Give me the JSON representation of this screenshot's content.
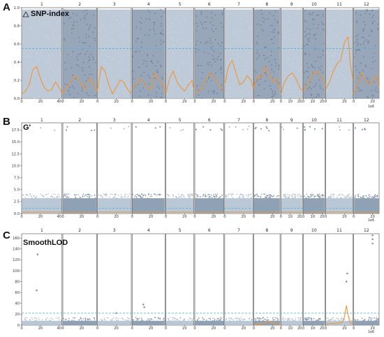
{
  "chart_data": [
    {
      "type": "scatter",
      "panel": "A",
      "title": "SNP-index",
      "title_icon": "triangle-icon",
      "chromosomes": [
        "1",
        "2",
        "3",
        "4",
        "5",
        "6",
        "7",
        "8",
        "9",
        "10",
        "11",
        "12"
      ],
      "chromosome_lengths_mb": [
        43,
        36,
        36,
        35,
        30,
        31,
        30,
        28,
        23,
        23,
        29,
        27
      ],
      "x_tick_labels": [
        [
          "0",
          "20",
          "40"
        ],
        [
          "0",
          "20"
        ],
        [
          "0",
          "20"
        ],
        [
          "0",
          "20"
        ],
        [
          "0",
          "20"
        ],
        [
          "0",
          "20"
        ],
        [
          "0",
          "20"
        ],
        [
          "0",
          "20"
        ],
        [
          "0",
          "10",
          "20"
        ],
        [
          "0",
          "10",
          "20"
        ],
        [
          "0",
          "20"
        ],
        [
          "0",
          "20"
        ]
      ],
      "x_tick_values": [
        [
          0,
          20,
          40
        ],
        [
          0,
          20
        ],
        [
          0,
          20
        ],
        [
          0,
          20
        ],
        [
          0,
          20
        ],
        [
          0,
          20
        ],
        [
          0,
          20
        ],
        [
          0,
          20
        ],
        [
          0,
          10,
          20
        ],
        [
          0,
          10,
          20
        ],
        [
          0,
          20
        ],
        [
          0,
          20
        ]
      ],
      "x_scale_label": "1e6",
      "ylim": [
        0,
        1.0
      ],
      "yticks": [
        "0.0",
        "0.2",
        "0.4",
        "0.6",
        "0.8",
        "1.0"
      ],
      "threshold": 0.55,
      "point_colors": [
        "#b3c1d1",
        "#8597ad"
      ],
      "line_color": "#f29433",
      "threshold_color": "#5ab4d6",
      "scatter": {
        "upper_typical": 0.98,
        "upper_peak": 1.0
      },
      "series": [
        {
          "name": "",
          "chromosome": "1",
          "x": [
            0,
            4,
            8,
            12,
            16,
            20,
            24,
            28,
            32,
            36,
            40,
            43
          ],
          "y": [
            0.05,
            0.08,
            0.15,
            0.32,
            0.35,
            0.22,
            0.12,
            0.08,
            0.1,
            0.18,
            0.12,
            0.06
          ]
        },
        {
          "name": "",
          "chromosome": "2",
          "x": [
            0,
            4,
            8,
            12,
            16,
            20,
            24,
            28,
            32,
            36
          ],
          "y": [
            0.05,
            0.12,
            0.18,
            0.25,
            0.22,
            0.15,
            0.1,
            0.22,
            0.18,
            0.08
          ]
        },
        {
          "name": "",
          "chromosome": "3",
          "x": [
            0,
            4,
            8,
            12,
            16,
            20,
            24,
            28,
            32,
            36
          ],
          "y": [
            0.08,
            0.35,
            0.3,
            0.15,
            0.05,
            0.12,
            0.2,
            0.18,
            0.1,
            0.05
          ]
        },
        {
          "name": "",
          "chromosome": "4",
          "x": [
            0,
            4,
            8,
            12,
            16,
            20,
            24,
            28,
            32,
            35
          ],
          "y": [
            0.1,
            0.15,
            0.22,
            0.18,
            0.12,
            0.1,
            0.28,
            0.22,
            0.15,
            0.08
          ]
        },
        {
          "name": "",
          "chromosome": "5",
          "x": [
            0,
            4,
            8,
            12,
            16,
            20,
            24,
            28,
            30
          ],
          "y": [
            0.05,
            0.22,
            0.3,
            0.18,
            0.12,
            0.08,
            0.15,
            0.2,
            0.1
          ]
        },
        {
          "name": "",
          "chromosome": "6",
          "x": [
            0,
            4,
            8,
            12,
            16,
            20,
            24,
            28,
            31
          ],
          "y": [
            0.05,
            0.08,
            0.12,
            0.2,
            0.28,
            0.25,
            0.18,
            0.12,
            0.08
          ]
        },
        {
          "name": "",
          "chromosome": "7",
          "x": [
            0,
            4,
            8,
            12,
            16,
            20,
            24,
            28,
            30
          ],
          "y": [
            0.15,
            0.35,
            0.42,
            0.28,
            0.15,
            0.18,
            0.25,
            0.2,
            0.12
          ]
        },
        {
          "name": "",
          "chromosome": "8",
          "x": [
            0,
            4,
            8,
            12,
            16,
            20,
            24,
            28
          ],
          "y": [
            0.1,
            0.25,
            0.22,
            0.35,
            0.28,
            0.18,
            0.22,
            0.1
          ]
        },
        {
          "name": "",
          "chromosome": "9",
          "x": [
            0,
            4,
            8,
            12,
            16,
            20,
            23
          ],
          "y": [
            0.05,
            0.18,
            0.25,
            0.28,
            0.22,
            0.12,
            0.08
          ]
        },
        {
          "name": "",
          "chromosome": "10",
          "x": [
            0,
            4,
            8,
            12,
            16,
            20,
            23
          ],
          "y": [
            0.08,
            0.15,
            0.22,
            0.3,
            0.28,
            0.22,
            0.15
          ]
        },
        {
          "name": "",
          "chromosome": "11",
          "x": [
            0,
            4,
            8,
            12,
            16,
            20,
            24,
            26,
            29
          ],
          "y": [
            0.1,
            0.18,
            0.3,
            0.38,
            0.42,
            0.62,
            0.68,
            0.4,
            0.2
          ]
        },
        {
          "name": "",
          "chromosome": "12",
          "x": [
            0,
            4,
            8,
            12,
            16,
            20,
            24,
            27
          ],
          "y": [
            0.05,
            0.15,
            0.28,
            0.22,
            0.15,
            0.2,
            0.25,
            0.12
          ]
        }
      ]
    },
    {
      "type": "scatter",
      "panel": "B",
      "title": "G'",
      "chromosomes": [
        "1",
        "2",
        "3",
        "4",
        "5",
        "6",
        "7",
        "8",
        "9",
        "10",
        "11",
        "12"
      ],
      "chromosome_lengths_mb": [
        43,
        36,
        36,
        35,
        30,
        31,
        30,
        28,
        23,
        23,
        29,
        27
      ],
      "x_tick_labels": [
        [
          "0",
          "20",
          "40"
        ],
        [
          "0",
          "20"
        ],
        [
          "0",
          "20"
        ],
        [
          "0",
          "20"
        ],
        [
          "0",
          "20"
        ],
        [
          "0",
          "20"
        ],
        [
          "0",
          "20"
        ],
        [
          "0",
          "20"
        ],
        [
          "0",
          "10",
          "20"
        ],
        [
          "0",
          "10",
          "20"
        ],
        [
          "0",
          "20"
        ],
        [
          "0",
          "20"
        ]
      ],
      "x_tick_values": [
        [
          0,
          20,
          40
        ],
        [
          0,
          20
        ],
        [
          0,
          20
        ],
        [
          0,
          20
        ],
        [
          0,
          20
        ],
        [
          0,
          20
        ],
        [
          0,
          20
        ],
        [
          0,
          20
        ],
        [
          0,
          10,
          20
        ],
        [
          0,
          10,
          20
        ],
        [
          0,
          20
        ],
        [
          0,
          20
        ]
      ],
      "x_scale_label": "1e6",
      "ylim": [
        0,
        19
      ],
      "yticks": [
        "0.0",
        "2.5",
        "5.0",
        "7.5",
        "10.0",
        "12.5",
        "15.0",
        "17.5"
      ],
      "threshold": 1.1,
      "point_colors": [
        "#b3c1d1",
        "#8597ad"
      ],
      "line_color": "#f29433",
      "threshold_color": "#5ab4d6",
      "scatter": {
        "upper_typical": 3.2,
        "outlier_value": 17.8
      },
      "series": [
        {
          "name": "",
          "chromosome": "all",
          "y_typical": 0.3
        }
      ]
    },
    {
      "type": "scatter",
      "panel": "C",
      "title": "SmoothLOD",
      "chromosomes": [
        "1",
        "2",
        "3",
        "4",
        "5",
        "6",
        "7",
        "8",
        "9",
        "10",
        "11",
        "12"
      ],
      "chromosome_lengths_mb": [
        43,
        36,
        36,
        35,
        30,
        31,
        30,
        28,
        23,
        23,
        29,
        27
      ],
      "x_tick_labels": [
        [
          "0",
          "20",
          "40"
        ],
        [
          "0",
          "20"
        ],
        [
          "0",
          "20"
        ],
        [
          "0",
          "20"
        ],
        [
          "0",
          "20"
        ],
        [
          "0",
          "20"
        ],
        [
          "0",
          "20"
        ],
        [
          "0",
          "20"
        ],
        [
          "0",
          "10",
          "20"
        ],
        [
          "0",
          "10",
          "20"
        ],
        [
          "0",
          "20"
        ],
        [
          "0",
          "20"
        ]
      ],
      "x_tick_values": [
        [
          0,
          20,
          40
        ],
        [
          0,
          20
        ],
        [
          0,
          20
        ],
        [
          0,
          20
        ],
        [
          0,
          20
        ],
        [
          0,
          20
        ],
        [
          0,
          20
        ],
        [
          0,
          20
        ],
        [
          0,
          10,
          20
        ],
        [
          0,
          10,
          20
        ],
        [
          0,
          20
        ],
        [
          0,
          20
        ]
      ],
      "x_scale_label": "1e6",
      "ylim": [
        0,
        168
      ],
      "yticks": [
        "0",
        "20",
        "40",
        "60",
        "80",
        "100",
        "120",
        "140",
        "160"
      ],
      "threshold": 22,
      "point_colors": [
        "#b3c1d1",
        "#8597ad"
      ],
      "line_color": "#f29433",
      "threshold_color": "#5ab4d6",
      "scatter": {
        "upper_typical": 8
      },
      "outliers": [
        {
          "chromosome": "1",
          "x": 17,
          "y": 130
        },
        {
          "chromosome": "1",
          "x": 16,
          "y": 64
        },
        {
          "chromosome": "3",
          "x": 20,
          "y": 22
        },
        {
          "chromosome": "4",
          "x": 12,
          "y": 38
        },
        {
          "chromosome": "4",
          "x": 13,
          "y": 33
        },
        {
          "chromosome": "11",
          "x": 23,
          "y": 95
        },
        {
          "chromosome": "11",
          "x": 22,
          "y": 80
        },
        {
          "chromosome": "12",
          "x": 20,
          "y": 165
        },
        {
          "chromosome": "12",
          "x": 20,
          "y": 158
        },
        {
          "chromosome": "12",
          "x": 20,
          "y": 150
        }
      ],
      "series": [
        {
          "name": "",
          "chromosome": "11",
          "x": [
            0,
            5,
            10,
            15,
            18,
            20,
            22,
            24,
            26,
            29
          ],
          "y": [
            2,
            3,
            3,
            4,
            6,
            15,
            36,
            18,
            5,
            2
          ]
        },
        {
          "name": "",
          "chromosome": "8",
          "x": [
            0,
            5,
            10,
            15,
            20,
            25,
            28
          ],
          "y": [
            1,
            2,
            3,
            6,
            5,
            2,
            1
          ]
        }
      ]
    }
  ]
}
